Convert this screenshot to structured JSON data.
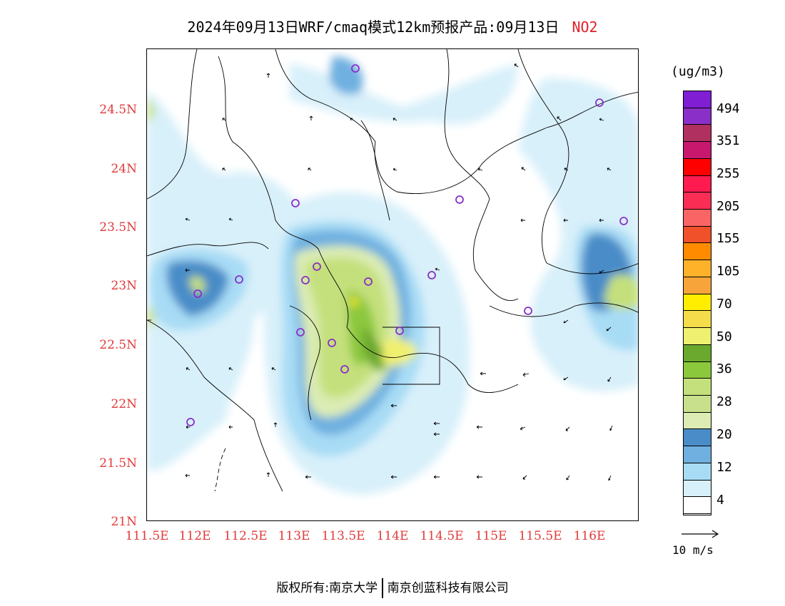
{
  "title": {
    "main": "2024年09月13日WRF/cmaq模式12km预报产品:09月13日",
    "pollutant": "NO2"
  },
  "axes": {
    "y_ticks": [
      "24.5N",
      "24N",
      "23.5N",
      "23N",
      "22.5N",
      "22N",
      "21.5N",
      "21N"
    ],
    "x_ticks": [
      "111.5E",
      "112E",
      "112.5E",
      "113E",
      "113.5E",
      "114E",
      "114.5E",
      "115E",
      "115.5E",
      "116E"
    ]
  },
  "legend": {
    "unit": "(ug/m3)",
    "colors": [
      "#7f1ed2",
      "#8a2fc8",
      "#b03060",
      "#c8186e",
      "#ff0000",
      "#ff1a50",
      "#fa2d55",
      "#fa6464",
      "#f0502a",
      "#ff8c00",
      "#fdb22a",
      "#f7a53a",
      "#ffee00",
      "#f4dc4a",
      "#f0f070",
      "#6aa82e",
      "#8cc83c",
      "#c4e07c",
      "#c8e08c",
      "#dcecb4",
      "#4a8cc8",
      "#6fb0e0",
      "#a8dcf5",
      "#d8f0fa",
      "#ffffff"
    ],
    "labels": [
      "494",
      "351",
      "255",
      "205",
      "155",
      "105",
      "70",
      "50",
      "36",
      "28",
      "20",
      "12",
      "4"
    ],
    "wind_reference": "10 m/s"
  },
  "footer": {
    "copyright": "版权所有:南京大学",
    "company": "南京创蓝科技有限公司"
  }
}
